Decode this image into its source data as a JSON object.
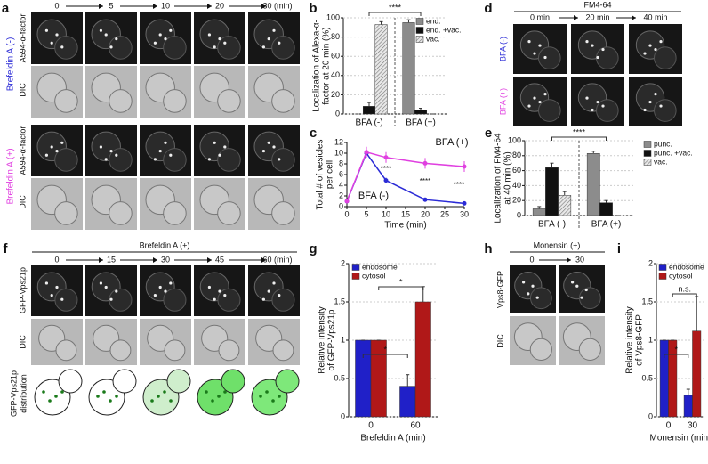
{
  "panel_a": {
    "label": "a",
    "times": [
      "0",
      "5",
      "10",
      "20",
      "30 (min)"
    ],
    "conditions": [
      "Brefeldin A (-)",
      "Brefeldin A (+)"
    ],
    "rows": [
      "A594-α-factor",
      "DIC"
    ]
  },
  "panel_d": {
    "label": "d",
    "title": "FM4-64",
    "times": [
      "0 min",
      "20 min",
      "40 min"
    ],
    "rows": [
      "BFA (-)",
      "BFA (+)"
    ]
  },
  "panel_f": {
    "label": "f",
    "title": "Brefeldin A (+)",
    "times": [
      "0",
      "15",
      "30",
      "45",
      "60 (min)"
    ],
    "rows": [
      "GFP-Vps21p",
      "DIC"
    ],
    "distribution_label": [
      "GFP-Vps21p",
      "distribution"
    ]
  },
  "panel_h": {
    "label": "h",
    "title": "Monensin (+)",
    "times": [
      "0",
      "30"
    ],
    "rows": [
      "Vps8-GFP",
      "DIC"
    ]
  },
  "chart_data": [
    {
      "label": "b",
      "type": "bar",
      "ylabel": [
        "Localization of Alexa-α-",
        "factor at 20 min (%)"
      ],
      "categories": [
        "BFA (-)",
        "BFA (+)"
      ],
      "category_colors": [
        "#2b2bd6",
        "#e040e0"
      ],
      "series": [
        {
          "name": "end.",
          "color": "#8c8c8c",
          "values": [
            0,
            95
          ],
          "errors": [
            0,
            3
          ]
        },
        {
          "name": "end. +vac.",
          "color": "#111111",
          "values": [
            8,
            4
          ],
          "errors": [
            4,
            2
          ]
        },
        {
          "name": "vac.",
          "color": "#bbbbbb",
          "hatch": true,
          "values": [
            93,
            0
          ],
          "errors": [
            3,
            0
          ]
        }
      ],
      "ylim": [
        0,
        100
      ],
      "yticks": [
        0,
        20,
        40,
        60,
        80,
        100
      ],
      "grid": true,
      "legend": "upper right",
      "annotations": [
        "****"
      ]
    },
    {
      "label": "c",
      "type": "line",
      "xlabel": "Time (min)",
      "ylabel": [
        "Total # of vesicles",
        "per cell"
      ],
      "x": [
        0,
        5,
        10,
        20,
        30
      ],
      "series": [
        {
          "name": "BFA (-)",
          "color": "#2b2bd6",
          "values": [
            1,
            10,
            4.9,
            1.3,
            0.6
          ],
          "errors": [
            0.3,
            0.8,
            0.5,
            0.2,
            0.1
          ]
        },
        {
          "name": "BFA (+)",
          "color": "#e040e0",
          "values": [
            1,
            10.2,
            9.2,
            8.1,
            7.5
          ],
          "errors": [
            0.3,
            1,
            1,
            1,
            1
          ]
        }
      ],
      "xlim": [
        0,
        30
      ],
      "xticks": [
        0,
        5,
        10,
        15,
        20,
        25,
        30
      ],
      "ylim": [
        0,
        12
      ],
      "yticks": [
        0,
        2,
        4,
        6,
        8,
        10,
        12
      ],
      "legend": "inline",
      "annotations": [
        "****",
        "****",
        "****"
      ]
    },
    {
      "label": "e",
      "type": "bar",
      "ylabel": [
        "Localization of FM4-64",
        "at 40 min (%)"
      ],
      "categories": [
        "BFA (-)",
        "BFA (+)"
      ],
      "category_colors": [
        "#2b2bd6",
        "#e040e0"
      ],
      "series": [
        {
          "name": "punc.",
          "color": "#8c8c8c",
          "values": [
            9,
            83
          ],
          "errors": [
            3,
            3
          ]
        },
        {
          "name": "punc. +vac.",
          "color": "#111111",
          "values": [
            64,
            17
          ],
          "errors": [
            6,
            3
          ]
        },
        {
          "name": "vac.",
          "color": "#bbbbbb",
          "hatch": true,
          "values": [
            27,
            0
          ],
          "errors": [
            5,
            0
          ]
        }
      ],
      "ylim": [
        0,
        100
      ],
      "yticks": [
        0,
        20,
        40,
        60,
        80,
        100
      ],
      "grid": true,
      "legend": "outside right",
      "annotations": [
        "****"
      ]
    },
    {
      "label": "g",
      "type": "bar",
      "xlabel": "Brefeldin A (min)",
      "ylabel": [
        "Relative intensity",
        "of GFP-Vps21p"
      ],
      "categories": [
        "0",
        "60"
      ],
      "series": [
        {
          "name": "endosome",
          "color": "#2020c8",
          "values": [
            1,
            0.4
          ],
          "errors": [
            0,
            0.15
          ]
        },
        {
          "name": "cytosol",
          "color": "#b01818",
          "values": [
            1,
            1.5
          ],
          "errors": [
            0,
            0.2
          ]
        }
      ],
      "ylim": [
        0,
        2
      ],
      "yticks": [
        0,
        0.5,
        1,
        1.5,
        2
      ],
      "grid": true,
      "legend": "upper left",
      "annotations": [
        "*",
        "*"
      ]
    },
    {
      "label": "i",
      "type": "bar",
      "xlabel": "Monensin (min)",
      "ylabel": [
        "Relative intensity",
        "of Vps8-GFP"
      ],
      "categories": [
        "0",
        "30"
      ],
      "series": [
        {
          "name": "endosome",
          "color": "#2020c8",
          "values": [
            1,
            0.28
          ],
          "errors": [
            0,
            0.08
          ]
        },
        {
          "name": "cytosol",
          "color": "#b01818",
          "values": [
            1,
            1.12
          ],
          "errors": [
            0,
            0.45
          ]
        }
      ],
      "ylim": [
        0,
        2
      ],
      "yticks": [
        0,
        0.5,
        1,
        1.5,
        2
      ],
      "grid": true,
      "legend": "upper left",
      "annotations": [
        "*",
        "n.s."
      ]
    }
  ]
}
